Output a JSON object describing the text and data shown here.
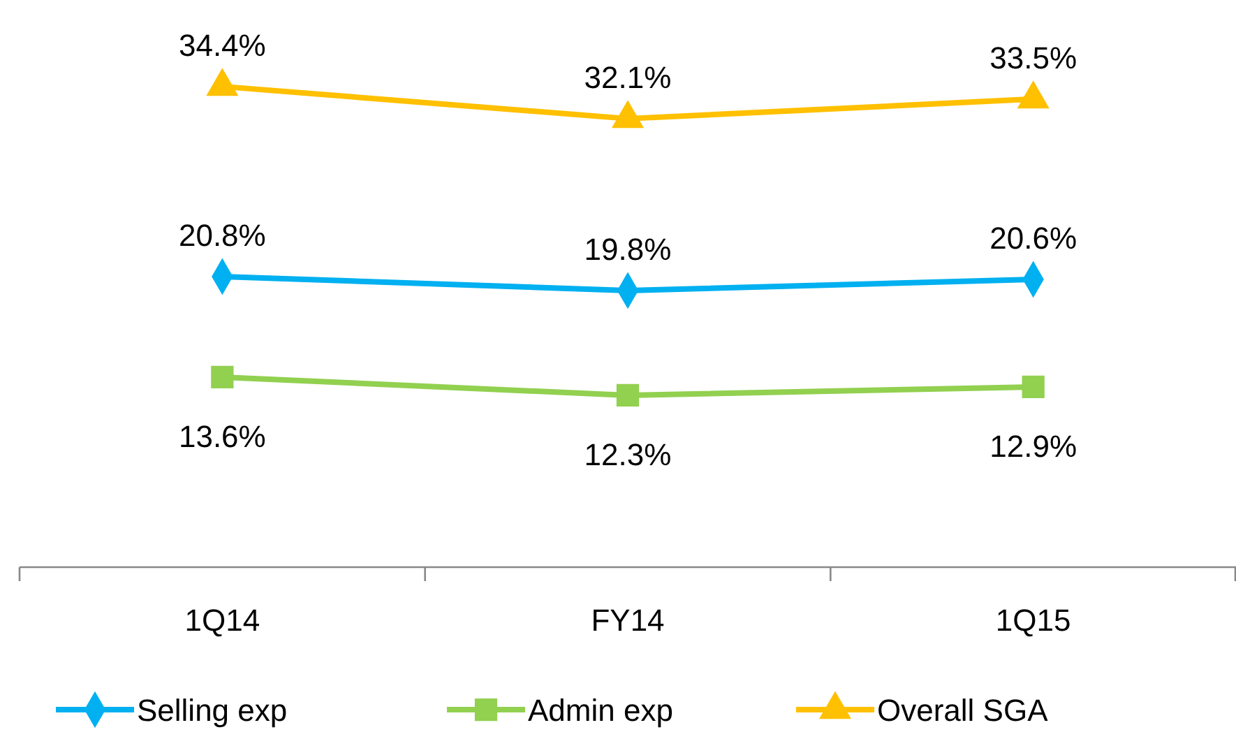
{
  "chart_data": {
    "type": "line",
    "categories": [
      "1Q14",
      "FY14",
      "1Q15"
    ],
    "series": [
      {
        "name": "Selling exp",
        "color": "#00b0f0",
        "marker": "diamond",
        "values": [
          20.8,
          19.8,
          20.6
        ],
        "value_labels": [
          "20.8%",
          "19.8%",
          "20.6%"
        ]
      },
      {
        "name": "Admin exp",
        "color": "#92d050",
        "marker": "square",
        "values": [
          13.6,
          12.3,
          12.9
        ],
        "value_labels": [
          "13.6%",
          "12.3%",
          "12.9%"
        ]
      },
      {
        "name": "Overall SGA",
        "color": "#ffc000",
        "marker": "triangle",
        "values": [
          34.4,
          32.1,
          33.5
        ],
        "value_labels": [
          "34.4%",
          "32.1%",
          "33.5%"
        ]
      }
    ],
    "legend": "bottom",
    "grid": false,
    "tick_labels": "x",
    "line_style": "solid"
  }
}
